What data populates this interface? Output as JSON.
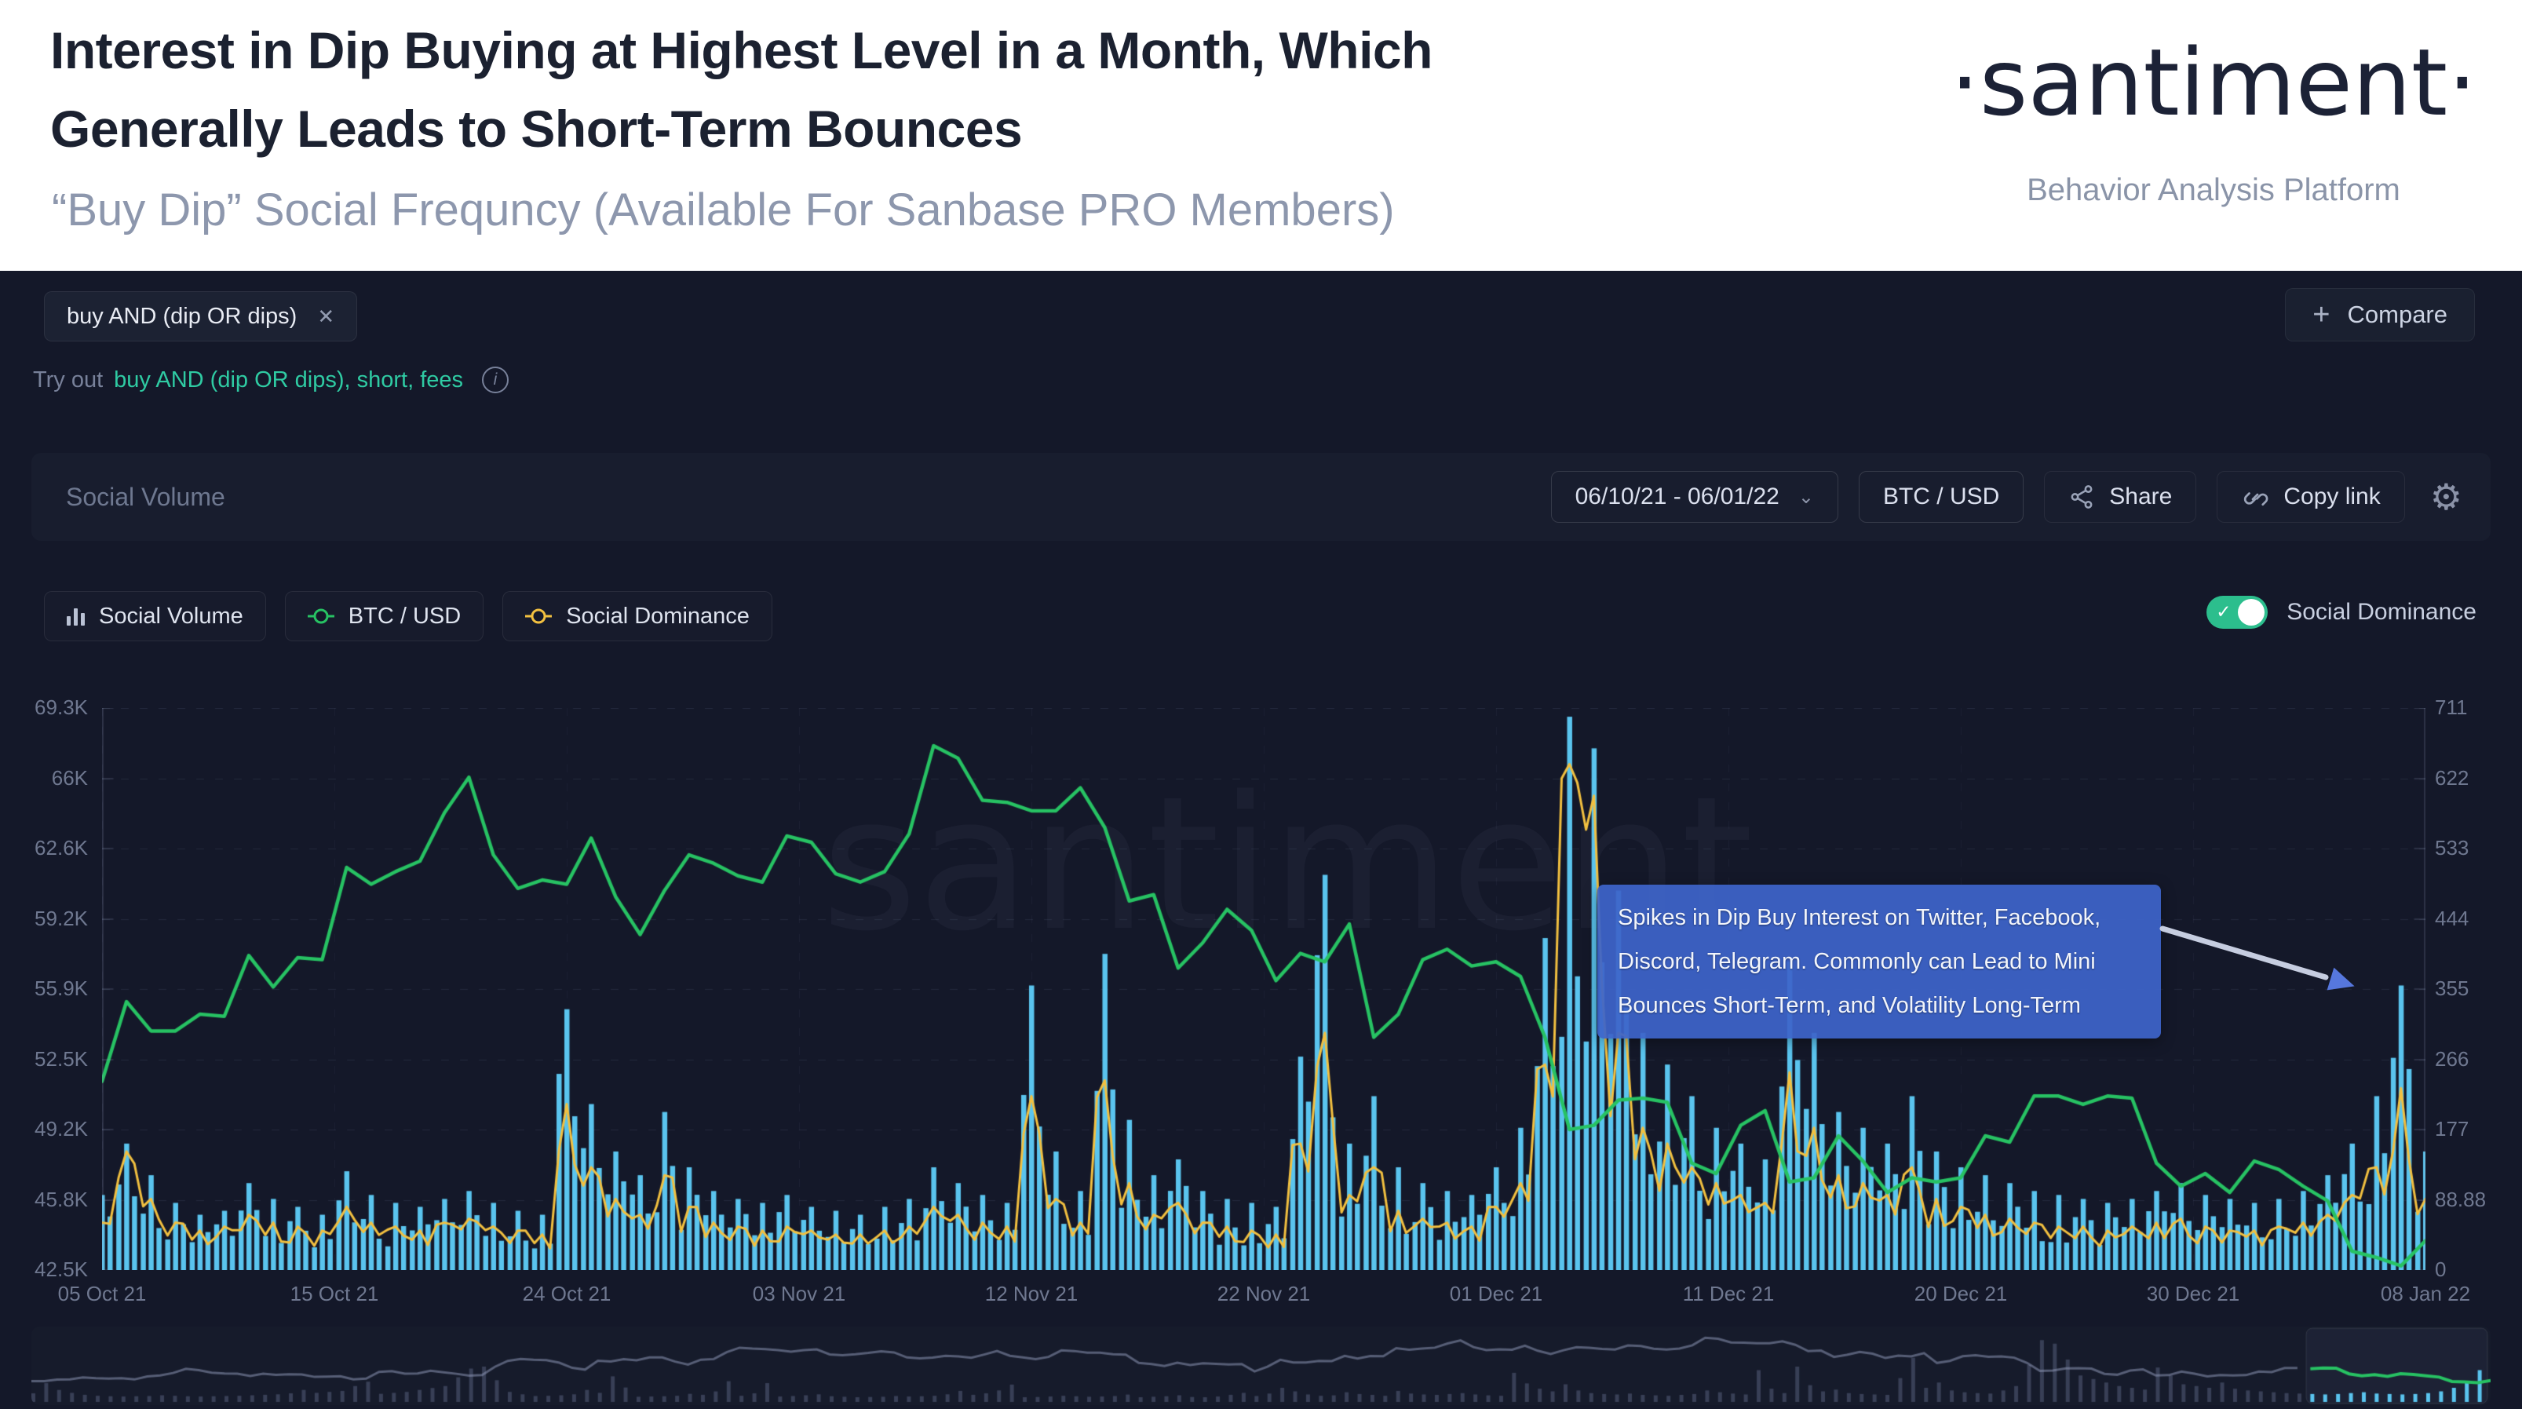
{
  "header": {
    "title_line1": "Interest in Dip Buying at Highest Level in a Month, Which",
    "title_line2": "Generally Leads to Short-Term Bounces",
    "subtitle": "“Buy Dip” Social Frequncy (Available For Sanbase PRO Members)",
    "logo": "·santiment·",
    "tagline": "Behavior Analysis Platform"
  },
  "query_bar": {
    "chip": "buy AND (dip OR dips)",
    "chip_close": "✕",
    "compare_plus": "+",
    "compare_label": "Compare"
  },
  "suggestions": {
    "prefix": "Try out",
    "links": "buy AND (dip OR dips), short, fees",
    "info": "i"
  },
  "toolbar": {
    "metric_label": "Social Volume",
    "date_range": "06/10/21 - 06/01/22",
    "pair_label": "BTC / USD",
    "share_label": "Share",
    "copy_link_label": "Copy link",
    "gear": "⚙"
  },
  "legend": {
    "items": [
      {
        "label": "Social Volume",
        "type": "bars",
        "color": "#b9c1d4"
      },
      {
        "label": "BTC / USD",
        "type": "line-marker",
        "color": "#27c263"
      },
      {
        "label": "Social Dominance",
        "type": "line-marker",
        "color": "#f2c040"
      }
    ],
    "toggle_label": "Social Dominance",
    "toggle_on": true,
    "toggle_color": "#2cbe8d",
    "toggle_check": "✓"
  },
  "watermark": "santiment",
  "annotation": {
    "lines": [
      "Spikes in Dip Buy Interest on Twitter, Facebook,",
      "Discord, Telegram. Commonly can Lead to Mini",
      "Bounces Short-Term, and Volatility Long-Term"
    ],
    "bg": "#3d64c9",
    "arrow_shaft": "#c6cde0",
    "arrow_head": "#5677dd"
  },
  "chart_data": {
    "type": "composite",
    "background": "#141829",
    "left_axis": {
      "title": "BTC / USD price",
      "ticks": [
        "69.3K",
        "66K",
        "62.6K",
        "59.2K",
        "55.9K",
        "52.5K",
        "49.2K",
        "45.8K",
        "42.5K"
      ],
      "min": 42.5,
      "max": 69.3
    },
    "right_axis": {
      "title": "Social Volume",
      "ticks": [
        "711",
        "622",
        "533",
        "444",
        "355",
        "266",
        "177",
        "88.88",
        "0"
      ],
      "min": 0,
      "max": 711
    },
    "x_ticks": [
      "05 Oct 21",
      "15 Oct 21",
      "24 Oct 21",
      "03 Nov 21",
      "12 Nov 21",
      "22 Nov 21",
      "01 Dec 21",
      "11 Dec 21",
      "20 Dec 21",
      "30 Dec 21",
      "08 Jan 22"
    ],
    "grid": "dashed",
    "legend_position": "top-left",
    "series": [
      {
        "name": "BTC / USD",
        "type": "line",
        "axis": "left",
        "color": "#27c263",
        "values": [
          51.5,
          55.3,
          53.9,
          53.9,
          54.7,
          54.6,
          57.5,
          56.0,
          57.4,
          57.3,
          61.7,
          60.9,
          61.5,
          62.0,
          64.3,
          66.0,
          62.3,
          60.7,
          61.1,
          60.9,
          63.1,
          60.3,
          58.5,
          60.6,
          62.3,
          61.9,
          61.3,
          61.0,
          63.2,
          62.9,
          61.4,
          61.0,
          61.5,
          63.3,
          67.5,
          66.9,
          64.9,
          64.8,
          64.4,
          64.4,
          65.5,
          63.6,
          60.1,
          60.4,
          56.9,
          58.1,
          59.7,
          58.7,
          56.3,
          57.6,
          57.2,
          59.0,
          53.6,
          54.7,
          57.3,
          57.8,
          57.0,
          57.2,
          56.5,
          53.6,
          49.2,
          49.4,
          50.6,
          50.7,
          50.5,
          47.6,
          47.1,
          49.4,
          50.1,
          46.7,
          46.9,
          48.9,
          47.7,
          46.2,
          46.9,
          46.7,
          46.9,
          48.9,
          48.6,
          50.8,
          50.8,
          50.4,
          50.8,
          50.7,
          47.6,
          46.5,
          47.1,
          46.2,
          47.7,
          47.3,
          46.5,
          45.8,
          43.4,
          43.1,
          42.7,
          43.9
        ]
      },
      {
        "name": "Social Volume",
        "type": "bar",
        "axis": "right",
        "color": "#5ac4ee",
        "values": [
          95,
          160,
          120,
          85,
          70,
          75,
          110,
          90,
          80,
          70,
          125,
          95,
          85,
          80,
          90,
          100,
          85,
          75,
          70,
          330,
          210,
          150,
          120,
          200,
          130,
          100,
          90,
          85,
          95,
          80,
          75,
          70,
          80,
          90,
          130,
          110,
          95,
          85,
          360,
          150,
          100,
          400,
          190,
          120,
          140,
          100,
          90,
          85,
          80,
          270,
          500,
          160,
          220,
          130,
          110,
          100,
          95,
          130,
          180,
          420,
          700,
          660,
          480,
          300,
          260,
          220,
          180,
          160,
          140,
          390,
          300,
          200,
          180,
          160,
          220,
          150,
          130,
          120,
          110,
          100,
          95,
          90,
          85,
          90,
          100,
          110,
          95,
          90,
          85,
          90,
          100,
          120,
          160,
          220,
          360,
          150
        ]
      },
      {
        "name": "Social Dominance",
        "type": "line",
        "axis": "hidden",
        "color": "#f2c040",
        "values": [
          60,
          150,
          90,
          60,
          50,
          55,
          70,
          60,
          55,
          50,
          80,
          60,
          55,
          50,
          60,
          65,
          55,
          50,
          45,
          210,
          130,
          90,
          70,
          120,
          80,
          60,
          55,
          50,
          55,
          50,
          45,
          45,
          50,
          55,
          80,
          70,
          60,
          55,
          220,
          90,
          60,
          240,
          110,
          70,
          85,
          60,
          55,
          50,
          45,
          160,
          300,
          95,
          130,
          75,
          65,
          60,
          55,
          80,
          110,
          260,
          640,
          600,
          300,
          180,
          160,
          130,
          110,
          95,
          85,
          250,
          180,
          120,
          110,
          95,
          130,
          90,
          80,
          70,
          65,
          60,
          55,
          55,
          50,
          55,
          60,
          65,
          55,
          50,
          50,
          55,
          60,
          70,
          95,
          130,
          230,
          90
        ]
      }
    ],
    "preview_strip": {
      "selection": "right ~7% of history highlighted",
      "selected_line_color": "#27c263",
      "selected_bar_color": "#5ac4ee"
    }
  }
}
